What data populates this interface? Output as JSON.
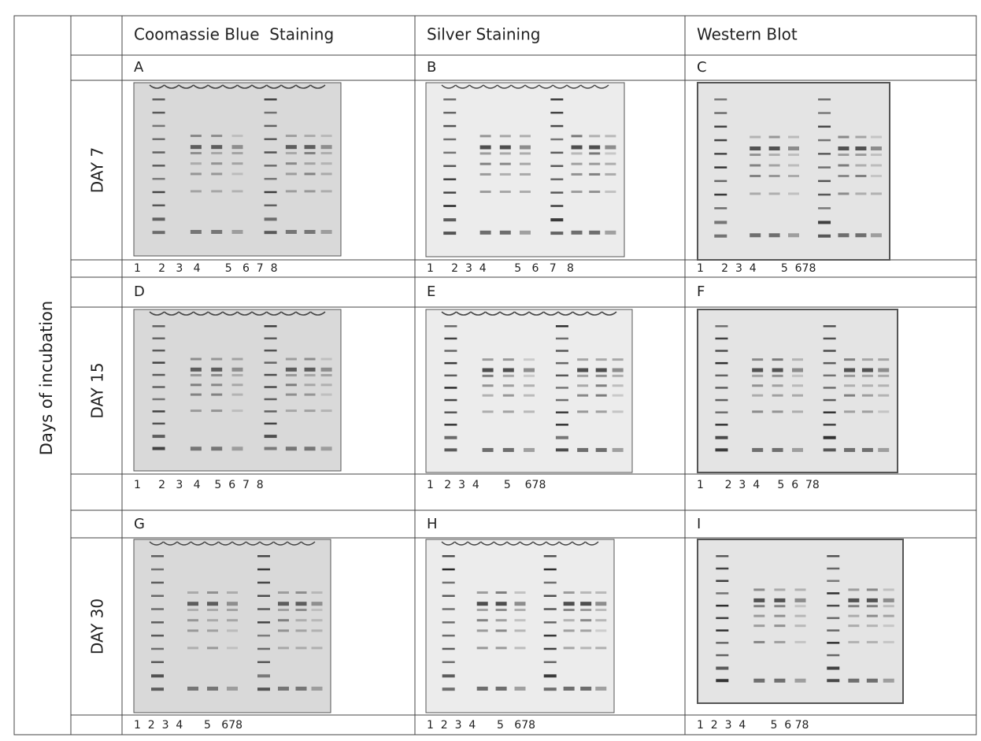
{
  "y_axis_label": "Days of incubation",
  "columns": [
    "Coomassie Blue  Staining",
    "Silver Staining",
    "Western Blot"
  ],
  "rows": [
    {
      "label": "DAY 7",
      "panels": [
        {
          "letter": "A",
          "lanes": "1     2   3   4       5   6  7  8"
        },
        {
          "letter": "B",
          "lanes": "1     2  3  4        5   6   7   8"
        },
        {
          "letter": "C",
          "lanes": "1     2  3  4       5  678"
        }
      ]
    },
    {
      "label": "DAY 15",
      "panels": [
        {
          "letter": "D",
          "lanes": "1     2   3   4    5  6  7  8"
        },
        {
          "letter": "E",
          "lanes": "1   2  3  4       5    678"
        },
        {
          "letter": "F",
          "lanes": "1      2  3  4     5  6  78"
        }
      ]
    },
    {
      "label": "DAY 30",
      "panels": [
        {
          "letter": "G",
          "lanes": "1  2  3  4      5   678"
        },
        {
          "letter": "H",
          "lanes": "1  2  3  4      5   678"
        },
        {
          "letter": "I",
          "lanes": "1  2  3  4       5  6 78"
        }
      ]
    }
  ]
}
